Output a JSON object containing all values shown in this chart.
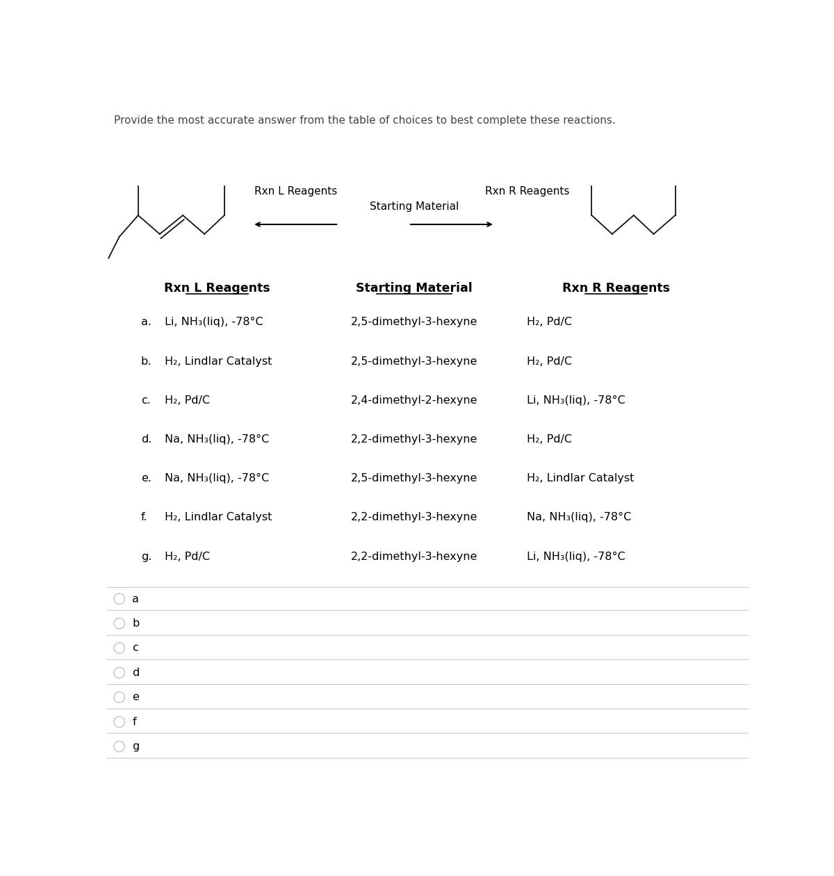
{
  "title": "Provide the most accurate answer from the table of choices to best complete these reactions.",
  "arrow_left_label": "Rxn L Reagents",
  "arrow_right_label": "Rxn R Reagents",
  "arrow_center_label": "Starting Material",
  "col_headers": [
    "Rxn L Reagents",
    "Starting Material",
    "Rxn R Reagents"
  ],
  "rows": [
    {
      "label": "a.",
      "rxnL": "Li, NH₃(liq), -78°C",
      "starting": "2,5-dimethyl-3-hexyne",
      "rxnR": "H₂, Pd/C"
    },
    {
      "label": "b.",
      "rxnL": "H₂, Lindlar Catalyst",
      "starting": "2,5-dimethyl-3-hexyne",
      "rxnR": "H₂, Pd/C"
    },
    {
      "label": "c.",
      "rxnL": "H₂, Pd/C",
      "starting": "2,4-dimethyl-2-hexyne",
      "rxnR": "Li, NH₃(liq), -78°C"
    },
    {
      "label": "d.",
      "rxnL": "Na, NH₃(liq), -78°C",
      "starting": "2,2-dimethyl-3-hexyne",
      "rxnR": "H₂, Pd/C"
    },
    {
      "label": "e.",
      "rxnL": "Na, NH₃(liq), -78°C",
      "starting": "2,5-dimethyl-3-hexyne",
      "rxnR": "H₂, Lindlar Catalyst"
    },
    {
      "label": "f.",
      "rxnL": "H₂, Lindlar Catalyst",
      "starting": "2,2-dimethyl-3-hexyne",
      "rxnR": "Na, NH₃(liq), -78°C"
    },
    {
      "label": "g.",
      "rxnL": "H₂, Pd/C",
      "starting": "2,2-dimethyl-3-hexyne",
      "rxnR": "Li, NH₃(liq), -78°C"
    }
  ],
  "radio_options": [
    "a",
    "b",
    "c",
    "d",
    "e",
    "f",
    "g"
  ],
  "bg_color": "#ffffff",
  "text_color": "#000000",
  "title_color": "#444444",
  "separator_color": "#cccccc",
  "struct_color": "#111111"
}
